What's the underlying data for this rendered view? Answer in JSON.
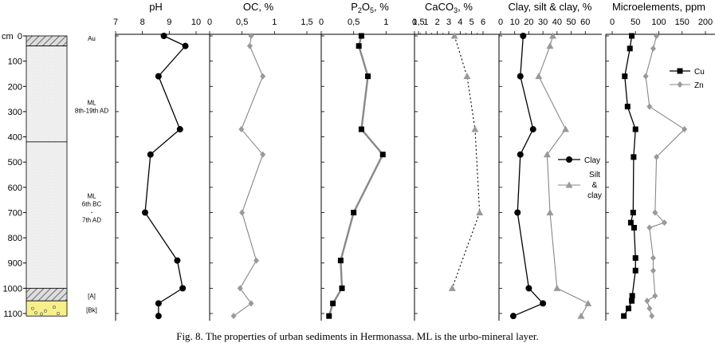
{
  "caption": "Fig. 8. The properties of urban sediments in Hermonassa. ML is the urbo-mineral layer.",
  "colors": {
    "line_dark": "#000000",
    "line_gray": "#888888",
    "marker_gray": "#999999",
    "layer_fill": "#eeeeee",
    "bk_fill": "#f7f08a",
    "hatch": "#888888"
  },
  "chart_data": {
    "type": "line",
    "depth_axis": {
      "unit": "cm",
      "ylim": [
        0,
        1100
      ],
      "ticks": [
        0,
        100,
        200,
        300,
        400,
        500,
        600,
        700,
        800,
        900,
        1000,
        1100
      ],
      "tick_labels": [
        "0",
        "100",
        "200",
        "300",
        "400",
        "500",
        "600",
        "700",
        "800",
        "900",
        "1000",
        "1100"
      ],
      "unit_label": "cm"
    },
    "column": {
      "layers": [
        {
          "name": "Au",
          "label": "Au",
          "top": 0,
          "bottom": 40,
          "fill": "hatch"
        },
        {
          "name": "ML-upper",
          "label_lines": [
            "ML",
            "8th-19th AD"
          ],
          "top": 40,
          "bottom": 420,
          "fill": "stipple"
        },
        {
          "name": "ML-lower",
          "label_lines": [
            "ML",
            "6th BC",
            "-",
            "7th AD"
          ],
          "top": 420,
          "bottom": 1000,
          "fill": "stipple"
        },
        {
          "name": "A",
          "label": "[A]",
          "top": 1000,
          "bottom": 1050,
          "fill": "hatch"
        },
        {
          "name": "Bk",
          "label": "[Bk]",
          "top": 1050,
          "bottom": 1110,
          "fill": "bk"
        }
      ],
      "label_depths": {
        "Au": 10,
        "ML-upper": 290,
        "ML-lower": 690,
        "A": 1030,
        "Bk": 1085
      }
    },
    "panels": [
      {
        "key": "ph",
        "title": "pH",
        "xlim": [
          7,
          10
        ],
        "ticks": [
          7,
          8,
          9,
          10
        ],
        "tick_labels": [
          "7",
          "8",
          "9",
          "10"
        ],
        "series": [
          {
            "name": "pH",
            "style": "black-circle",
            "depth": [
              0,
              40,
              160,
              370,
              470,
              700,
              890,
              1000,
              1060,
              1110
            ],
            "values": [
              8.8,
              9.6,
              8.6,
              9.4,
              8.3,
              8.1,
              9.3,
              9.5,
              8.6,
              8.6
            ]
          }
        ]
      },
      {
        "key": "oc",
        "title": "OC, %",
        "xlim": [
          0,
          1.5
        ],
        "ticks": [
          0,
          0.5,
          1,
          1.5
        ],
        "tick_labels": [
          "0",
          "0,5",
          "1",
          "1,5"
        ],
        "series": [
          {
            "name": "OC",
            "style": "gray-diamond",
            "depth": [
              0,
              40,
              160,
              370,
              470,
              700,
              890,
              1000,
              1060,
              1110
            ],
            "values": [
              0.64,
              0.62,
              0.82,
              0.49,
              0.82,
              0.5,
              0.72,
              0.47,
              0.64,
              0.37
            ]
          }
        ]
      },
      {
        "key": "p2o5",
        "title": "P2O5, %",
        "title_parts": {
          "main": "P",
          "sub1": "2",
          "mid": "O",
          "sub2": "5",
          "rest": ", %"
        },
        "xlim": [
          0,
          1.5
        ],
        "ticks": [
          0,
          0.5,
          1,
          1.5
        ],
        "tick_labels": [
          "0",
          "0,5",
          "1",
          "1,5"
        ],
        "series": [
          {
            "name": "P2O5",
            "style": "gray-line-black-square",
            "depth": [
              0,
              40,
              160,
              370,
              470,
              700,
              890,
              1000,
              1060,
              1110
            ],
            "values": [
              0.62,
              0.58,
              0.72,
              0.62,
              0.95,
              0.5,
              0.3,
              0.32,
              0.18,
              0.12
            ]
          }
        ]
      },
      {
        "key": "caco3",
        "title": "CaCO3, %",
        "title_parts": {
          "main": "CaCO",
          "sub1": "3",
          "rest": ", %"
        },
        "xlim": [
          0,
          6
        ],
        "ticks": [
          0,
          1,
          2,
          3,
          4,
          5,
          6
        ],
        "tick_labels": [
          "0",
          "1",
          "2",
          "3",
          "4",
          "5",
          "6"
        ],
        "series": [
          {
            "name": "CaCO3",
            "style": "dotted-gray-triangle",
            "depth": [
              0,
              160,
              370,
              700,
              1000
            ],
            "values": [
              3.5,
              4.6,
              5.3,
              5.7,
              3.3
            ]
          }
        ]
      },
      {
        "key": "clay",
        "title": "Clay, silt & clay, %",
        "xlim": [
          0,
          70
        ],
        "ticks": [
          0,
          10,
          20,
          30,
          40,
          50,
          60
        ],
        "tick_labels": [
          "0",
          "10",
          "20",
          "30",
          "40",
          "50",
          "60"
        ],
        "legend": [
          "Clay",
          "Silt",
          "&",
          "clay"
        ],
        "series": [
          {
            "name": "Clay",
            "style": "black-circle",
            "depth": [
              0,
              160,
              370,
              470,
              700,
              1000,
              1060,
              1110
            ],
            "values": [
              16,
              14,
              23,
              14,
              12,
              20,
              30,
              9
            ]
          },
          {
            "name": "Silt & clay",
            "style": "gray-triangle",
            "depth": [
              0,
              40,
              160,
              370,
              470,
              700,
              1000,
              1060,
              1110
            ],
            "values": [
              37,
              35,
              27,
              46,
              33,
              35,
              40,
              62,
              57
            ]
          }
        ]
      },
      {
        "key": "micro",
        "title": "Microelements, ppm",
        "xlim": [
          0,
          200
        ],
        "ticks": [
          0,
          50,
          100,
          150,
          200
        ],
        "tick_labels": [
          "0",
          "50",
          "100",
          "150",
          "200"
        ],
        "legend": [
          "Cu",
          "Zn"
        ],
        "series": [
          {
            "name": "Cu",
            "style": "black-square",
            "depth": [
              0,
              50,
              160,
              280,
              370,
              480,
              700,
              740,
              760,
              880,
              930,
              1030,
              1050,
              1080,
              1110
            ],
            "values": [
              42,
              38,
              27,
              33,
              50,
              46,
              45,
              40,
              47,
              50,
              50,
              43,
              42,
              35,
              25
            ],
            "label": "Cu"
          },
          {
            "name": "Zn",
            "style": "gray-diamond",
            "depth": [
              0,
              50,
              160,
              280,
              370,
              480,
              700,
              740,
              760,
              880,
              930,
              1030,
              1050,
              1080,
              1110
            ],
            "values": [
              95,
              88,
              72,
              80,
              155,
              95,
              92,
              112,
              80,
              88,
              88,
              92,
              75,
              80,
              85
            ],
            "label": "Zn"
          }
        ]
      }
    ]
  }
}
